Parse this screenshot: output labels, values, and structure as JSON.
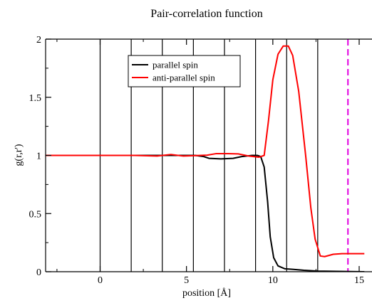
{
  "chart_data": {
    "type": "line",
    "title": "Pair-correlation function",
    "xlabel": "position [Å]",
    "ylabel": "g(r,r')",
    "xlim": [
      -3.3,
      15.3
    ],
    "ylim": [
      0,
      2
    ],
    "x_ticks": [
      0,
      5,
      10,
      15
    ],
    "x_tick_labels": [
      "0",
      "5",
      "10",
      "15"
    ],
    "y_ticks": [
      0,
      0.5,
      1,
      1.5,
      2
    ],
    "y_tick_labels": [
      "0",
      "0.5",
      "1",
      "1.5",
      "2"
    ],
    "grid": false,
    "legend_position": "top-center",
    "vertical_lines": [
      0,
      1.8,
      3.6,
      5.4,
      7.2,
      9.0,
      10.8,
      12.6
    ],
    "dashed_vertical_line": 14.35,
    "series": [
      {
        "name": "parallel spin",
        "color": "#000000",
        "points": [
          [
            -3.3,
            1.0
          ],
          [
            5.5,
            1.0
          ],
          [
            6.0,
            0.99
          ],
          [
            6.3,
            0.975
          ],
          [
            7.0,
            0.97
          ],
          [
            7.7,
            0.975
          ],
          [
            8.2,
            0.99
          ],
          [
            8.8,
            1.0
          ],
          [
            9.1,
            1.0
          ],
          [
            9.3,
            0.99
          ],
          [
            9.5,
            0.9
          ],
          [
            9.7,
            0.6
          ],
          [
            9.85,
            0.3
          ],
          [
            10.05,
            0.12
          ],
          [
            10.3,
            0.05
          ],
          [
            10.7,
            0.025
          ],
          [
            11.2,
            0.02
          ],
          [
            11.8,
            0.012
          ],
          [
            12.6,
            0.005
          ],
          [
            15.3,
            0.0
          ]
        ]
      },
      {
        "name": "anti-parallel spin",
        "color": "#ff0000",
        "points": [
          [
            -3.3,
            1.0
          ],
          [
            2.0,
            1.0
          ],
          [
            3.3,
            0.995
          ],
          [
            4.1,
            1.008
          ],
          [
            4.8,
            0.995
          ],
          [
            5.4,
            0.998
          ],
          [
            6.2,
            1.002
          ],
          [
            6.7,
            1.015
          ],
          [
            7.4,
            1.015
          ],
          [
            8.0,
            1.013
          ],
          [
            8.6,
            0.995
          ],
          [
            9.2,
            0.985
          ],
          [
            9.5,
            1.0
          ],
          [
            9.75,
            1.3
          ],
          [
            10.0,
            1.65
          ],
          [
            10.3,
            1.87
          ],
          [
            10.6,
            1.94
          ],
          [
            10.9,
            1.94
          ],
          [
            11.15,
            1.86
          ],
          [
            11.5,
            1.55
          ],
          [
            11.9,
            1.0
          ],
          [
            12.2,
            0.55
          ],
          [
            12.45,
            0.28
          ],
          [
            12.75,
            0.135
          ],
          [
            13.0,
            0.13
          ],
          [
            13.5,
            0.15
          ],
          [
            14.0,
            0.155
          ],
          [
            15.3,
            0.155
          ]
        ]
      }
    ]
  }
}
